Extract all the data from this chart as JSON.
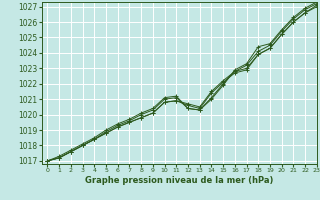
{
  "title": "Graphe pression niveau de la mer (hPa)",
  "bg_color": "#c5e8e5",
  "grid_color": "#ffffff",
  "line_color": "#2d5a1e",
  "xlim": [
    -0.5,
    23
  ],
  "ylim": [
    1016.8,
    1027.3
  ],
  "yticks": [
    1017,
    1018,
    1019,
    1020,
    1021,
    1022,
    1023,
    1024,
    1025,
    1026,
    1027
  ],
  "xticks": [
    0,
    1,
    2,
    3,
    4,
    5,
    6,
    7,
    8,
    9,
    10,
    11,
    12,
    13,
    14,
    15,
    16,
    17,
    18,
    19,
    20,
    21,
    22,
    23
  ],
  "series": [
    [
      1017.0,
      1017.2,
      1017.6,
      1018.0,
      1018.4,
      1018.8,
      1019.2,
      1019.5,
      1019.8,
      1020.1,
      1020.8,
      1020.9,
      1020.7,
      1020.5,
      1021.5,
      1022.2,
      1022.8,
      1023.0,
      1023.9,
      1024.3,
      1025.2,
      1026.0,
      1026.6,
      1027.1
    ],
    [
      1017.0,
      1017.2,
      1017.6,
      1018.0,
      1018.4,
      1018.8,
      1019.2,
      1019.5,
      1019.8,
      1020.1,
      1020.8,
      1020.9,
      1020.6,
      1020.4,
      1021.4,
      1022.1,
      1022.7,
      1022.9,
      1023.9,
      1024.3,
      1025.2,
      1026.0,
      1026.6,
      1027.0
    ],
    [
      1017.0,
      1017.2,
      1017.6,
      1018.0,
      1018.4,
      1018.9,
      1019.3,
      1019.6,
      1020.0,
      1020.3,
      1021.0,
      1021.1,
      1020.4,
      1020.3,
      1021.1,
      1022.0,
      1022.8,
      1023.2,
      1024.1,
      1024.5,
      1025.4,
      1026.2,
      1026.8,
      1027.2
    ],
    [
      1017.0,
      1017.3,
      1017.7,
      1018.1,
      1018.5,
      1019.0,
      1019.4,
      1019.7,
      1020.1,
      1020.4,
      1021.1,
      1021.2,
      1020.4,
      1020.3,
      1021.0,
      1021.9,
      1022.9,
      1023.3,
      1024.4,
      1024.6,
      1025.5,
      1026.3,
      1026.9,
      1027.3
    ]
  ],
  "ytick_fontsize": 5.5,
  "xtick_fontsize": 4.5,
  "xlabel_fontsize": 6.0
}
